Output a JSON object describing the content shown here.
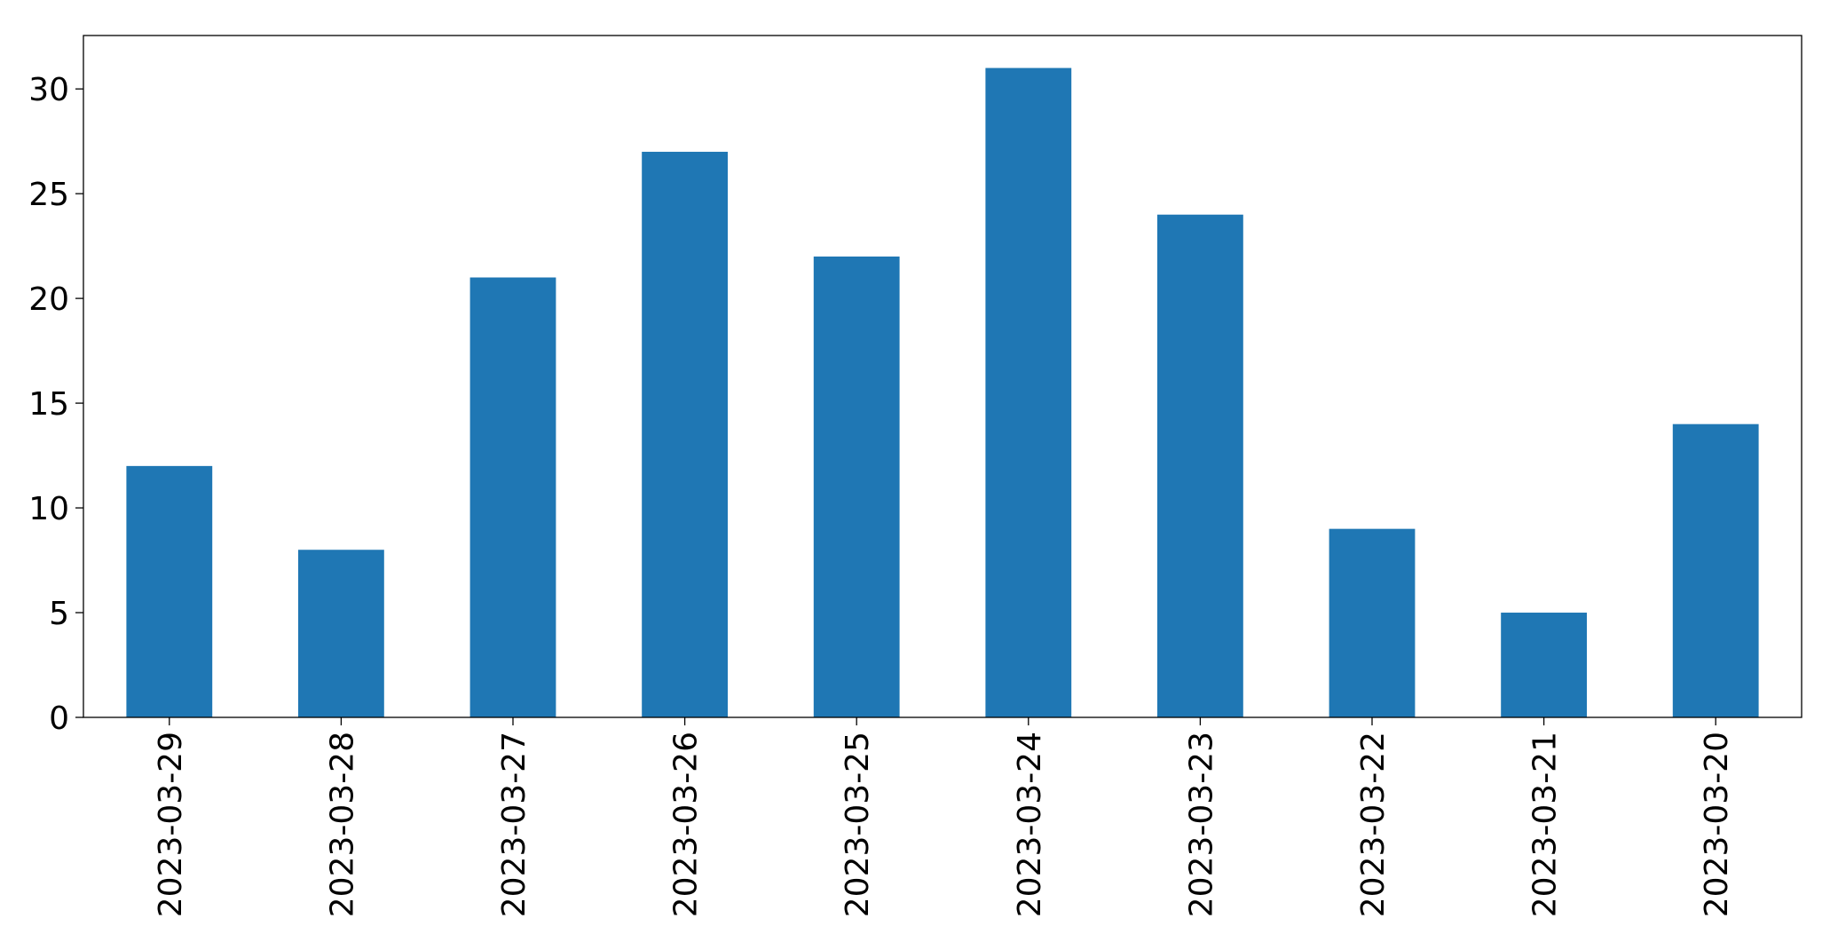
{
  "chart_data": {
    "type": "bar",
    "categories": [
      "2023-03-29",
      "2023-03-28",
      "2023-03-27",
      "2023-03-26",
      "2023-03-25",
      "2023-03-24",
      "2023-03-23",
      "2023-03-22",
      "2023-03-21",
      "2023-03-20"
    ],
    "values": [
      12,
      8,
      21,
      27,
      22,
      31,
      24,
      9,
      5,
      14
    ],
    "color": "#1f77b4",
    "ylim": [
      0,
      32.55
    ],
    "yticks": [
      0,
      5,
      10,
      15,
      20,
      25,
      30
    ],
    "grid": false
  }
}
